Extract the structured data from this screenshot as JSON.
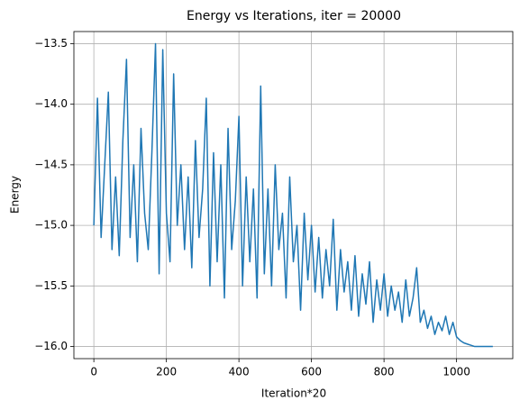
{
  "chart_data": {
    "type": "line",
    "title": "Energy vs Iterations, iter = 20000",
    "x_label": "Iteration*20",
    "y_label": "Energy",
    "x": [
      0,
      10,
      20,
      30,
      40,
      50,
      60,
      70,
      80,
      90,
      100,
      110,
      120,
      130,
      140,
      150,
      160,
      170,
      180,
      190,
      200,
      210,
      220,
      230,
      240,
      250,
      260,
      270,
      280,
      290,
      300,
      310,
      320,
      330,
      340,
      350,
      360,
      370,
      380,
      390,
      400,
      410,
      420,
      430,
      440,
      450,
      460,
      470,
      480,
      490,
      500,
      510,
      520,
      530,
      540,
      550,
      560,
      570,
      580,
      590,
      600,
      610,
      620,
      630,
      640,
      650,
      660,
      670,
      680,
      690,
      700,
      710,
      720,
      730,
      740,
      750,
      760,
      770,
      780,
      790,
      800,
      810,
      820,
      830,
      840,
      850,
      860,
      870,
      880,
      890,
      900,
      910,
      920,
      930,
      940,
      950,
      960,
      970,
      980,
      990,
      1000,
      1010,
      1020,
      1030,
      1040,
      1050,
      1060,
      1070,
      1080,
      1090,
      1100
    ],
    "series": [
      {
        "name": "Energy",
        "color": "#1f77b4",
        "values": [
          -15.0,
          -13.95,
          -15.1,
          -14.5,
          -13.9,
          -15.2,
          -14.6,
          -15.25,
          -14.3,
          -13.63,
          -15.1,
          -14.5,
          -15.3,
          -14.2,
          -14.9,
          -15.2,
          -14.4,
          -13.5,
          -15.4,
          -13.55,
          -14.9,
          -15.3,
          -13.75,
          -15.0,
          -14.5,
          -15.2,
          -14.6,
          -15.35,
          -14.3,
          -15.1,
          -14.7,
          -13.95,
          -15.5,
          -14.4,
          -15.3,
          -14.5,
          -15.6,
          -14.2,
          -15.2,
          -14.8,
          -14.1,
          -15.5,
          -14.6,
          -15.3,
          -14.7,
          -15.6,
          -13.85,
          -15.4,
          -14.7,
          -15.5,
          -14.5,
          -15.2,
          -14.9,
          -15.6,
          -14.6,
          -15.3,
          -15.0,
          -15.7,
          -14.9,
          -15.45,
          -15.0,
          -15.55,
          -15.1,
          -15.6,
          -15.2,
          -15.5,
          -14.95,
          -15.7,
          -15.2,
          -15.55,
          -15.3,
          -15.7,
          -15.25,
          -15.75,
          -15.4,
          -15.65,
          -15.3,
          -15.8,
          -15.45,
          -15.7,
          -15.4,
          -15.75,
          -15.5,
          -15.7,
          -15.55,
          -15.8,
          -15.45,
          -15.75,
          -15.6,
          -15.35,
          -15.8,
          -15.7,
          -15.85,
          -15.75,
          -15.9,
          -15.8,
          -15.87,
          -15.75,
          -15.9,
          -15.8,
          -15.92,
          -15.95,
          -15.97,
          -15.98,
          -15.99,
          -16.0,
          -16.0,
          -16.0,
          -16.0,
          -16.0,
          -16.0
        ]
      }
    ],
    "xlim": [
      -55,
      1155
    ],
    "ylim": [
      -16.1,
      -13.4
    ],
    "xticks": [
      0,
      200,
      400,
      600,
      800,
      1000
    ],
    "yticks": [
      {
        "value": -16.0,
        "label": "−16.0"
      },
      {
        "value": -15.5,
        "label": "−15.5"
      },
      {
        "value": -15.0,
        "label": "−15.0"
      },
      {
        "value": -14.5,
        "label": "−14.5"
      },
      {
        "value": -14.0,
        "label": "−14.0"
      },
      {
        "value": -13.5,
        "label": "−13.5"
      }
    ],
    "grid": true
  }
}
